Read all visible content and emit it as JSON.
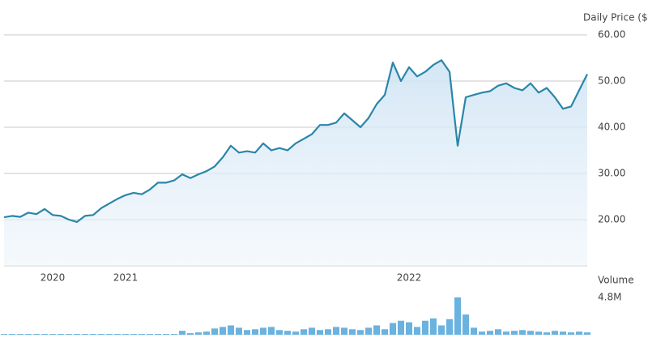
{
  "chart_data": [
    {
      "type": "line",
      "axis_title": "Daily Price ($)",
      "color": "#2a86a8",
      "grid": true,
      "categories": [
        null,
        null,
        null,
        null,
        null,
        null,
        "2020",
        null,
        null,
        null,
        null,
        null,
        null,
        null,
        null,
        "2021",
        null,
        null,
        null,
        null,
        null,
        null,
        null,
        null,
        null,
        null,
        null,
        null,
        null,
        null,
        null,
        null,
        null,
        null,
        null,
        null,
        null,
        null,
        null,
        null,
        null,
        null,
        null,
        null,
        null,
        null,
        null,
        null,
        null,
        null,
        "2022",
        null,
        null,
        null,
        null,
        null,
        null,
        null,
        null,
        null,
        null,
        null,
        null,
        null,
        null,
        null,
        null,
        null,
        null,
        null,
        null,
        null,
        null
      ],
      "values": [
        20.5,
        20.8,
        20.6,
        21.5,
        21.2,
        22.3,
        21.0,
        20.8,
        20.0,
        19.5,
        20.8,
        21.0,
        22.5,
        23.5,
        24.5,
        25.3,
        25.8,
        25.5,
        26.5,
        28.0,
        28.0,
        28.5,
        29.8,
        29.0,
        29.8,
        30.5,
        31.5,
        33.5,
        36.0,
        34.5,
        34.8,
        34.5,
        36.5,
        35.0,
        35.5,
        35.0,
        36.5,
        37.5,
        38.5,
        40.5,
        40.5,
        41.0,
        43.0,
        41.5,
        40.0,
        42.0,
        45.0,
        47.0,
        54.0,
        50.0,
        53.0,
        51.0,
        52.0,
        53.5,
        54.5,
        52.0,
        36.0,
        46.5,
        47.0,
        47.5,
        47.8,
        49.0,
        49.5,
        48.5,
        48.0,
        49.5,
        47.5,
        48.5,
        46.5,
        44.0,
        44.5,
        48.0,
        51.5
      ],
      "ylim": [
        10,
        60
      ],
      "yticks": [
        {
          "value": 20,
          "label": "20.00"
        },
        {
          "value": 30,
          "label": "30.00"
        },
        {
          "value": 40,
          "label": "40.00"
        },
        {
          "value": 50,
          "label": "50.00"
        },
        {
          "value": 60,
          "label": "60.00"
        }
      ]
    },
    {
      "type": "bar",
      "axis_title": "Volume",
      "color": "#6ab2df",
      "values": [
        100000,
        100000,
        100000,
        100000,
        100000,
        100000,
        100000,
        100000,
        100000,
        100000,
        100000,
        100000,
        100000,
        100000,
        100000,
        100000,
        100000,
        100000,
        100000,
        100000,
        100000,
        100000,
        500000,
        200000,
        300000,
        400000,
        800000,
        1000000,
        1200000,
        900000,
        600000,
        700000,
        900000,
        1000000,
        600000,
        500000,
        400000,
        700000,
        900000,
        600000,
        700000,
        1000000,
        900000,
        700000,
        600000,
        900000,
        1200000,
        700000,
        1500000,
        1800000,
        1600000,
        1000000,
        1800000,
        2100000,
        1200000,
        2000000,
        4800000,
        2600000,
        900000,
        400000,
        500000,
        700000,
        400000,
        500000,
        600000,
        500000,
        400000,
        300000,
        500000,
        400000,
        300000,
        400000,
        300000
      ],
      "ylim": [
        0,
        4800000
      ],
      "yticks": [
        {
          "value": 4800000,
          "label": "4.8M"
        }
      ]
    }
  ]
}
